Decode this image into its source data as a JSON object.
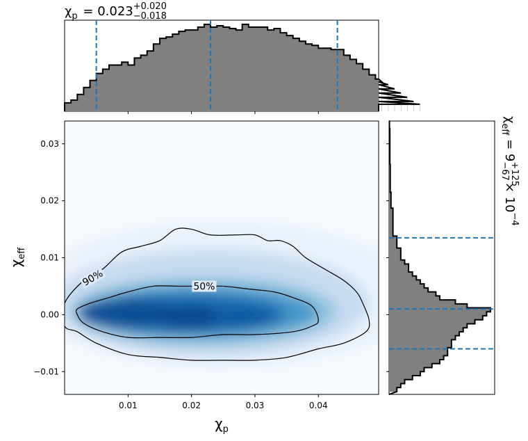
{
  "chart_data": [
    {
      "type": "histogram",
      "panel": "top-marginal",
      "title": {
        "symbol": "χ",
        "sub": "p",
        "median": "0.023",
        "plus": "+0.020",
        "minus": "−0.018"
      },
      "xlim": [
        0.0,
        0.0495
      ],
      "bin_edges_start": 0.0,
      "bin_width": 0.001,
      "counts": [
        6,
        8,
        12,
        17,
        22,
        27,
        30,
        33,
        33,
        35,
        33,
        38,
        40,
        43,
        48,
        52,
        53,
        55,
        57,
        58,
        58,
        60,
        62,
        60,
        61,
        60,
        59,
        58,
        62,
        60,
        60,
        60,
        58,
        59,
        56,
        54,
        52,
        50,
        48,
        47,
        45,
        45,
        44,
        44,
        40,
        37,
        34,
        30,
        26,
        23,
        21,
        19,
        16,
        13,
        10,
        7,
        5
      ],
      "quantile_lines": [
        0.005,
        0.023,
        0.043
      ],
      "line_color": "#1f77b4",
      "fill_color": "#808080"
    },
    {
      "type": "density",
      "panel": "joint",
      "xlabel": {
        "symbol": "χ",
        "sub": "p"
      },
      "ylabel": {
        "symbol": "χ",
        "sub": "eff"
      },
      "xlim": [
        0.0,
        0.0495
      ],
      "ylim": [
        -0.014,
        0.034
      ],
      "xticks": [
        0.01,
        0.02,
        0.03,
        0.04
      ],
      "xtick_labels": [
        "0.01",
        "0.02",
        "0.03",
        "0.04"
      ],
      "yticks": [
        -0.01,
        0.0,
        0.01,
        0.02,
        0.03
      ],
      "ytick_labels": [
        "−0.01",
        "0.00",
        "0.01",
        "0.02",
        "0.03"
      ],
      "colormap": "Blues",
      "contours": [
        {
          "label": "90%",
          "points": [
            [
              0.0,
              0.002
            ],
            [
              0.003,
              0.006
            ],
            [
              0.006,
              0.008
            ],
            [
              0.009,
              0.011
            ],
            [
              0.012,
              0.012
            ],
            [
              0.015,
              0.013
            ],
            [
              0.0175,
              0.015
            ],
            [
              0.02,
              0.015
            ],
            [
              0.023,
              0.014
            ],
            [
              0.027,
              0.014
            ],
            [
              0.03,
              0.014
            ],
            [
              0.032,
              0.013
            ],
            [
              0.034,
              0.013
            ],
            [
              0.036,
              0.012
            ],
            [
              0.038,
              0.01
            ],
            [
              0.041,
              0.008
            ],
            [
              0.044,
              0.006
            ],
            [
              0.046,
              0.004
            ],
            [
              0.047,
              0.002
            ],
            [
              0.048,
              -0.001
            ],
            [
              0.0475,
              -0.003
            ],
            [
              0.044,
              -0.005
            ],
            [
              0.04,
              -0.006
            ],
            [
              0.035,
              -0.0075
            ],
            [
              0.03,
              -0.008
            ],
            [
              0.025,
              -0.008
            ],
            [
              0.02,
              -0.008
            ],
            [
              0.015,
              -0.0075
            ],
            [
              0.01,
              -0.007
            ],
            [
              0.005,
              -0.005
            ],
            [
              0.002,
              -0.003
            ],
            [
              0.0,
              -0.002
            ]
          ]
        },
        {
          "label": "50%",
          "points": [
            [
              0.002,
              0.001
            ],
            [
              0.004,
              0.002
            ],
            [
              0.007,
              0.003
            ],
            [
              0.01,
              0.004
            ],
            [
              0.014,
              0.005
            ],
            [
              0.018,
              0.005
            ],
            [
              0.021,
              0.005
            ],
            [
              0.025,
              0.005
            ],
            [
              0.029,
              0.0045
            ],
            [
              0.033,
              0.004
            ],
            [
              0.036,
              0.003
            ],
            [
              0.039,
              0.0015
            ],
            [
              0.04,
              -0.001
            ],
            [
              0.039,
              -0.002
            ],
            [
              0.036,
              -0.003
            ],
            [
              0.03,
              -0.0035
            ],
            [
              0.025,
              -0.0035
            ],
            [
              0.02,
              -0.004
            ],
            [
              0.015,
              -0.004
            ],
            [
              0.01,
              -0.004
            ],
            [
              0.006,
              -0.003
            ],
            [
              0.003,
              -0.0015
            ],
            [
              0.002,
              0.0
            ]
          ]
        }
      ],
      "contour_labels": [
        {
          "text": "90%",
          "x": 0.0044,
          "y": 0.0065,
          "angle": -30
        },
        {
          "text": "50%",
          "x": 0.022,
          "y": 0.005,
          "angle": 0
        }
      ]
    },
    {
      "type": "histogram",
      "panel": "right-marginal",
      "orientation": "horizontal",
      "title": {
        "symbol": "χ",
        "sub": "eff",
        "median": "9",
        "plus": "+125",
        "minus": "−67",
        "scale": "× 10",
        "exp": "−4"
      },
      "ylim": [
        -0.014,
        0.034
      ],
      "bin_edges_start": -0.0135,
      "bin_width": 0.0007,
      "counts": [
        2,
        3,
        4,
        6,
        8,
        9,
        11,
        13,
        14,
        15,
        15,
        16,
        16,
        17,
        18,
        19,
        20,
        22,
        24,
        25,
        26,
        20,
        17,
        13,
        12,
        10,
        9,
        8,
        7,
        6,
        5,
        5,
        4,
        3,
        3,
        3,
        2,
        2,
        2,
        1,
        1,
        1,
        1,
        1,
        1,
        1,
        0.5,
        0.5,
        0.5,
        0.5,
        0.3,
        0.3,
        0.3,
        0.3,
        0.3,
        0.3,
        0.3,
        0.2,
        0.2,
        0.2,
        0.2,
        0.2,
        0.2,
        0.2,
        0.2,
        0.2,
        0.1,
        0.1
      ],
      "quantile_lines": [
        -0.006,
        0.001,
        0.0135
      ],
      "line_color": "#1f77b4",
      "fill_color": "#808080"
    }
  ]
}
